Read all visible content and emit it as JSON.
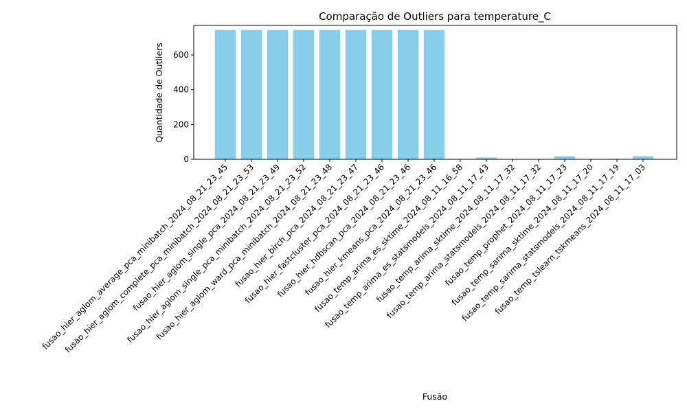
{
  "chart_data": {
    "type": "bar",
    "title": "Comparação de Outliers para temperature_C",
    "xlabel": "Fusão",
    "ylabel": "Quantidade de Outliers",
    "ylim": [
      0,
      770
    ],
    "yticks": [
      0,
      200,
      400,
      600
    ],
    "bar_color": "#87ceeb",
    "grid": false,
    "categories": [
      "fusao_hier_aglom_average_pca_minibatch_2024_08_21_23_45",
      "fusao_hier_aglom_complete_pca_minibatch_2024_08_21_23_53",
      "fusao_hier_aglom_single_pca_2024_08_21_23_49",
      "fusao_hier_aglom_single_pca_minibatch_2024_08_21_23_52",
      "fusao_hier_aglom_ward_pca_minibatch_2024_08_21_23_48",
      "fusao_hier_birch_pca_2024_08_21_23_47",
      "fusao_hier_fastcluster_pca_2024_08_21_23_46",
      "fusao_hier_hdbscan_pca_2024_08_21_23_46",
      "fusao_hier_kmeans_pca_2024_08_21_23_46",
      "fusao_temp_arima_es_sktime_2024_08_11_16_58",
      "fusao_temp_arima_es_statsmodels_2024_08_11_17_43",
      "fusao_temp_arima_sktime_2024_08_11_17_32",
      "fusao_temp_arima_statsmodels_2024_08_11_17_32",
      "fusao_temp_prophet_2024_08_11_17_23",
      "fusao_temp_sarima_sktime_2024_08_11_17_20",
      "fusao_temp_sarima_statsmodels_2024_08_11_17_19",
      "fusao_temp_tslearn_tskmeans_2024_08_11_17_03"
    ],
    "values": [
      744,
      744,
      744,
      744,
      744,
      744,
      744,
      744,
      744,
      3,
      10,
      2,
      2,
      18,
      2,
      3,
      18
    ]
  }
}
